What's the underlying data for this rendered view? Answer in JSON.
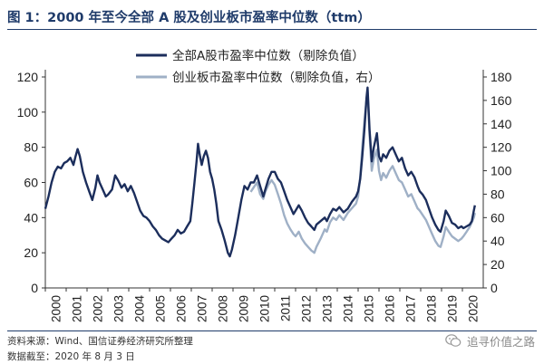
{
  "title": "图 1：2000 年至今全部 A 股及创业板市盈率中位数（ttm）",
  "source": "资料来源：Wind、国信证券经济研究所整理",
  "date_note": "数据截至：2020 年 8 月 3 日",
  "watermark": "追寻价值之路",
  "watermark_icon": "wechat-icon",
  "chart_data": {
    "type": "line",
    "x_categories": [
      "2000",
      "2001",
      "2002",
      "2003",
      "2004",
      "2005",
      "2006",
      "2007",
      "2008",
      "2009",
      "2010",
      "2011",
      "2012",
      "2013",
      "2014",
      "2015",
      "2016",
      "2017",
      "2018",
      "2019",
      "2020"
    ],
    "left_axis": {
      "min": 0,
      "max": 120,
      "ticks": [
        0,
        20,
        40,
        60,
        80,
        100,
        120
      ]
    },
    "right_axis": {
      "min": 0,
      "max": 180,
      "ticks": [
        0,
        20,
        40,
        60,
        80,
        100,
        120,
        140,
        160,
        180
      ]
    },
    "grid": false,
    "legend_position": "top-center",
    "series": [
      {
        "name": "全部A股市盈率中位数（剔除负值）",
        "axis": "left",
        "color": "#1c2e5c",
        "points": [
          [
            2000.0,
            45
          ],
          [
            2000.15,
            52
          ],
          [
            2000.3,
            60
          ],
          [
            2000.45,
            66
          ],
          [
            2000.6,
            69
          ],
          [
            2000.75,
            68
          ],
          [
            2000.9,
            71
          ],
          [
            2001.05,
            72
          ],
          [
            2001.2,
            74
          ],
          [
            2001.35,
            70
          ],
          [
            2001.45,
            75
          ],
          [
            2001.55,
            79
          ],
          [
            2001.65,
            75
          ],
          [
            2001.8,
            66
          ],
          [
            2001.95,
            60
          ],
          [
            2002.1,
            55
          ],
          [
            2002.25,
            50
          ],
          [
            2002.4,
            57
          ],
          [
            2002.5,
            64
          ],
          [
            2002.6,
            60
          ],
          [
            2002.75,
            56
          ],
          [
            2002.9,
            52
          ],
          [
            2003.0,
            53
          ],
          [
            2003.2,
            56
          ],
          [
            2003.35,
            64
          ],
          [
            2003.5,
            61
          ],
          [
            2003.65,
            57
          ],
          [
            2003.8,
            59
          ],
          [
            2003.95,
            55
          ],
          [
            2004.1,
            58
          ],
          [
            2004.25,
            54
          ],
          [
            2004.4,
            49
          ],
          [
            2004.55,
            44
          ],
          [
            2004.7,
            41
          ],
          [
            2004.85,
            40
          ],
          [
            2005.0,
            38
          ],
          [
            2005.15,
            35
          ],
          [
            2005.3,
            33
          ],
          [
            2005.45,
            30
          ],
          [
            2005.6,
            28
          ],
          [
            2005.75,
            27
          ],
          [
            2005.9,
            26
          ],
          [
            2006.05,
            28
          ],
          [
            2006.2,
            30
          ],
          [
            2006.35,
            33
          ],
          [
            2006.5,
            31
          ],
          [
            2006.65,
            32
          ],
          [
            2006.8,
            35
          ],
          [
            2006.95,
            38
          ],
          [
            2007.05,
            48
          ],
          [
            2007.15,
            60
          ],
          [
            2007.25,
            72
          ],
          [
            2007.32,
            82
          ],
          [
            2007.4,
            76
          ],
          [
            2007.5,
            70
          ],
          [
            2007.6,
            75
          ],
          [
            2007.7,
            78
          ],
          [
            2007.8,
            74
          ],
          [
            2007.9,
            66
          ],
          [
            2008.0,
            62
          ],
          [
            2008.1,
            56
          ],
          [
            2008.2,
            48
          ],
          [
            2008.3,
            38
          ],
          [
            2008.45,
            33
          ],
          [
            2008.6,
            27
          ],
          [
            2008.75,
            20
          ],
          [
            2008.85,
            18
          ],
          [
            2008.95,
            22
          ],
          [
            2009.1,
            30
          ],
          [
            2009.25,
            40
          ],
          [
            2009.4,
            50
          ],
          [
            2009.55,
            58
          ],
          [
            2009.7,
            56
          ],
          [
            2009.85,
            60
          ],
          [
            2010.0,
            60
          ],
          [
            2010.15,
            64
          ],
          [
            2010.3,
            58
          ],
          [
            2010.45,
            52
          ],
          [
            2010.55,
            56
          ],
          [
            2010.7,
            62
          ],
          [
            2010.85,
            66
          ],
          [
            2011.0,
            66
          ],
          [
            2011.15,
            62
          ],
          [
            2011.3,
            60
          ],
          [
            2011.45,
            55
          ],
          [
            2011.6,
            50
          ],
          [
            2011.75,
            46
          ],
          [
            2011.9,
            42
          ],
          [
            2012.0,
            44
          ],
          [
            2012.15,
            47
          ],
          [
            2012.3,
            44
          ],
          [
            2012.45,
            40
          ],
          [
            2012.6,
            37
          ],
          [
            2012.75,
            35
          ],
          [
            2012.9,
            33
          ],
          [
            2013.0,
            36
          ],
          [
            2013.2,
            38
          ],
          [
            2013.4,
            40
          ],
          [
            2013.5,
            38
          ],
          [
            2013.65,
            42
          ],
          [
            2013.8,
            45
          ],
          [
            2013.95,
            44
          ],
          [
            2014.1,
            46
          ],
          [
            2014.3,
            43
          ],
          [
            2014.5,
            45
          ],
          [
            2014.7,
            49
          ],
          [
            2014.9,
            52
          ],
          [
            2015.0,
            55
          ],
          [
            2015.1,
            62
          ],
          [
            2015.2,
            75
          ],
          [
            2015.3,
            90
          ],
          [
            2015.4,
            108
          ],
          [
            2015.45,
            114
          ],
          [
            2015.55,
            90
          ],
          [
            2015.65,
            72
          ],
          [
            2015.75,
            80
          ],
          [
            2015.9,
            88
          ],
          [
            2016.0,
            75
          ],
          [
            2016.1,
            72
          ],
          [
            2016.2,
            76
          ],
          [
            2016.35,
            74
          ],
          [
            2016.5,
            78
          ],
          [
            2016.65,
            80
          ],
          [
            2016.8,
            76
          ],
          [
            2016.95,
            72
          ],
          [
            2017.1,
            74
          ],
          [
            2017.25,
            68
          ],
          [
            2017.4,
            64
          ],
          [
            2017.55,
            66
          ],
          [
            2017.7,
            63
          ],
          [
            2017.85,
            58
          ],
          [
            2017.95,
            55
          ],
          [
            2018.1,
            53
          ],
          [
            2018.25,
            50
          ],
          [
            2018.4,
            45
          ],
          [
            2018.55,
            40
          ],
          [
            2018.7,
            36
          ],
          [
            2018.85,
            33
          ],
          [
            2018.95,
            32
          ],
          [
            2019.1,
            38
          ],
          [
            2019.2,
            44
          ],
          [
            2019.35,
            41
          ],
          [
            2019.5,
            37
          ],
          [
            2019.65,
            36
          ],
          [
            2019.8,
            34
          ],
          [
            2019.95,
            35
          ],
          [
            2020.05,
            34
          ],
          [
            2020.2,
            35
          ],
          [
            2020.35,
            36
          ],
          [
            2020.45,
            38
          ],
          [
            2020.55,
            44
          ],
          [
            2020.6,
            47
          ]
        ]
      },
      {
        "name": "创业板市盈率中位数（剔除负值，右）",
        "axis": "right",
        "color": "#9fb0c6",
        "points": [
          [
            2009.85,
            82
          ],
          [
            2010.0,
            86
          ],
          [
            2010.15,
            90
          ],
          [
            2010.3,
            80
          ],
          [
            2010.45,
            76
          ],
          [
            2010.55,
            82
          ],
          [
            2010.7,
            88
          ],
          [
            2010.85,
            92
          ],
          [
            2011.0,
            88
          ],
          [
            2011.15,
            80
          ],
          [
            2011.3,
            72
          ],
          [
            2011.45,
            62
          ],
          [
            2011.6,
            55
          ],
          [
            2011.75,
            50
          ],
          [
            2011.9,
            46
          ],
          [
            2012.0,
            44
          ],
          [
            2012.15,
            48
          ],
          [
            2012.3,
            42
          ],
          [
            2012.45,
            38
          ],
          [
            2012.6,
            35
          ],
          [
            2012.75,
            32
          ],
          [
            2012.9,
            30
          ],
          [
            2013.0,
            35
          ],
          [
            2013.2,
            42
          ],
          [
            2013.4,
            50
          ],
          [
            2013.5,
            48
          ],
          [
            2013.65,
            56
          ],
          [
            2013.8,
            60
          ],
          [
            2013.95,
            58
          ],
          [
            2014.1,
            62
          ],
          [
            2014.3,
            58
          ],
          [
            2014.5,
            64
          ],
          [
            2014.7,
            68
          ],
          [
            2014.9,
            72
          ],
          [
            2015.0,
            78
          ],
          [
            2015.1,
            95
          ],
          [
            2015.2,
            120
          ],
          [
            2015.3,
            142
          ],
          [
            2015.4,
            160
          ],
          [
            2015.45,
            168
          ],
          [
            2015.55,
            130
          ],
          [
            2015.65,
            100
          ],
          [
            2015.75,
            110
          ],
          [
            2015.9,
            118
          ],
          [
            2016.0,
            100
          ],
          [
            2016.1,
            92
          ],
          [
            2016.2,
            98
          ],
          [
            2016.35,
            94
          ],
          [
            2016.5,
            100
          ],
          [
            2016.65,
            104
          ],
          [
            2016.8,
            98
          ],
          [
            2016.95,
            92
          ],
          [
            2017.1,
            90
          ],
          [
            2017.25,
            84
          ],
          [
            2017.4,
            78
          ],
          [
            2017.55,
            80
          ],
          [
            2017.7,
            74
          ],
          [
            2017.85,
            68
          ],
          [
            2017.95,
            66
          ],
          [
            2018.1,
            62
          ],
          [
            2018.25,
            58
          ],
          [
            2018.4,
            52
          ],
          [
            2018.55,
            46
          ],
          [
            2018.7,
            40
          ],
          [
            2018.85,
            36
          ],
          [
            2018.95,
            35
          ],
          [
            2019.1,
            44
          ],
          [
            2019.2,
            52
          ],
          [
            2019.35,
            48
          ],
          [
            2019.5,
            44
          ],
          [
            2019.65,
            42
          ],
          [
            2019.8,
            40
          ],
          [
            2019.95,
            42
          ],
          [
            2020.05,
            44
          ],
          [
            2020.2,
            48
          ],
          [
            2020.35,
            52
          ],
          [
            2020.45,
            56
          ],
          [
            2020.55,
            60
          ],
          [
            2020.6,
            64
          ]
        ]
      }
    ]
  }
}
